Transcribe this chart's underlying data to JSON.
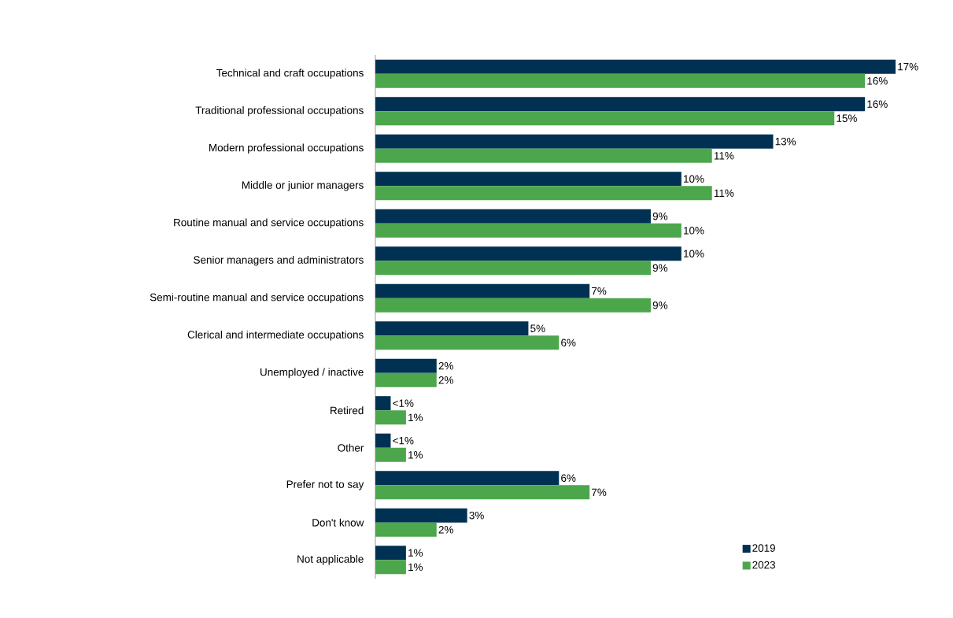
{
  "chart_data": {
    "type": "bar",
    "orientation": "horizontal",
    "legend": "bottom right",
    "categories": [
      "Technical and craft occupations",
      "Traditional professional occupations",
      "Modern professional occupations",
      "Middle or junior managers",
      "Routine manual and service occupations",
      "Senior managers and administrators",
      "Semi-routine manual and service occupations",
      "Clerical and intermediate occupations",
      "Unemployed / inactive",
      "Retired",
      "Other",
      "Prefer not to say",
      "Don't know",
      "Not applicable"
    ],
    "series": [
      {
        "name": "2019",
        "color": "#003152",
        "values": [
          17,
          16,
          13,
          10,
          9,
          10,
          7,
          5,
          2,
          0.5,
          0.5,
          6,
          3,
          1
        ],
        "value_labels": [
          "17%",
          "16%",
          "13%",
          "10%",
          "9%",
          "10%",
          "7%",
          "5%",
          "2%",
          "<1%",
          "<1%",
          "6%",
          "3%",
          "1%"
        ]
      },
      {
        "name": "2023",
        "color": "#4ca64c",
        "values": [
          16,
          15,
          11,
          11,
          10,
          9,
          9,
          6,
          2,
          1,
          1,
          7,
          2,
          1
        ],
        "value_labels": [
          "16%",
          "15%",
          "11%",
          "11%",
          "10%",
          "9%",
          "9%",
          "6%",
          "2%",
          "1%",
          "1%",
          "7%",
          "2%",
          "1%"
        ]
      }
    ]
  }
}
